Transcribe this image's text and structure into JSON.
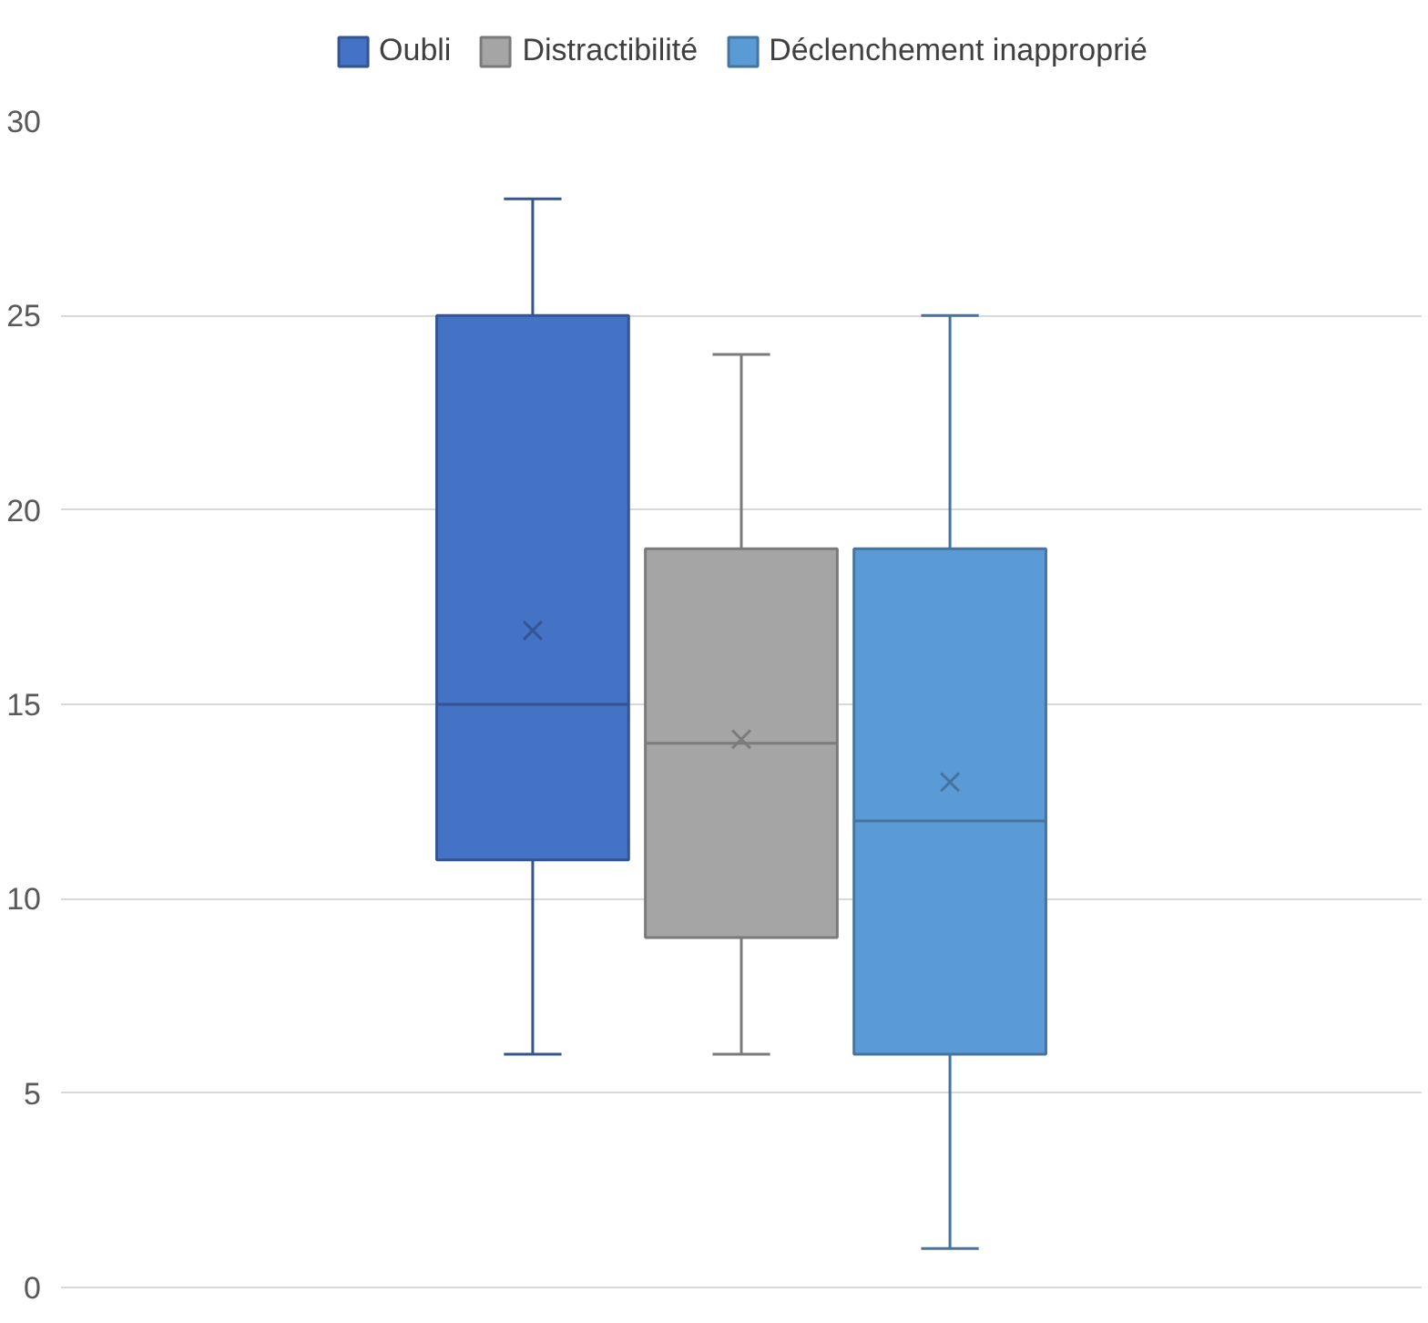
{
  "chart_data": {
    "type": "box",
    "categories": [
      null
    ],
    "series": [
      {
        "name": "Oubli",
        "color": "#4472c4",
        "boxes": [
          {
            "low": 6,
            "q1": 11,
            "median": 15,
            "q3": 25,
            "high": 28,
            "mean": 16.9
          }
        ]
      },
      {
        "name": "Distractibilité",
        "color": "#a5a5a5",
        "boxes": [
          {
            "low": 6,
            "q1": 9,
            "median": 14,
            "q3": 19,
            "high": 24,
            "mean": 14.1
          }
        ]
      },
      {
        "name": "Déclenchement inapproprié",
        "color": "#5b9bd5",
        "boxes": [
          {
            "low": 1,
            "q1": 6,
            "median": 12,
            "q3": 19,
            "high": 25,
            "mean": 13
          }
        ]
      }
    ],
    "ylim": [
      0,
      30
    ],
    "yticks": [
      0,
      5,
      10,
      15,
      20,
      25,
      30
    ],
    "grid": "y",
    "legend": "top",
    "tick_labels": "y",
    "marker": "cross"
  }
}
